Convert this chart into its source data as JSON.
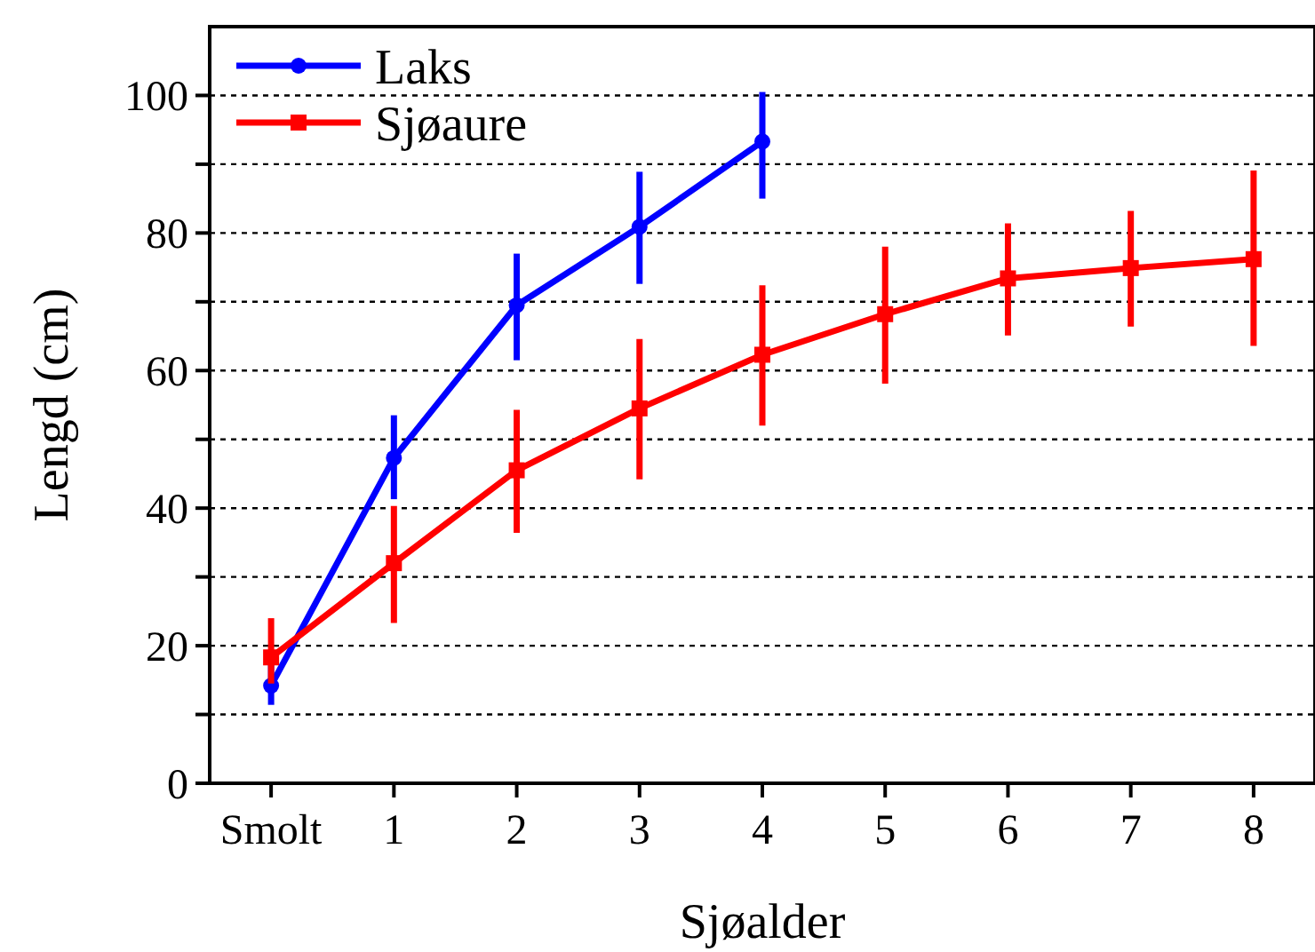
{
  "chart_data": {
    "type": "line",
    "xlabel": "Sjøalder",
    "ylabel": "Lengd (cm)",
    "categories": [
      "Smolt",
      "1",
      "2",
      "3",
      "4",
      "5",
      "6",
      "7",
      "8"
    ],
    "series": [
      {
        "name": "Laks",
        "color": "#0000ff",
        "marker": "circle",
        "values": [
          14.2,
          47.3,
          69.5,
          80.9,
          93.3,
          null,
          null,
          null,
          null
        ],
        "errors": [
          [
            11.4,
            17.6
          ],
          [
            41.3,
            53.5
          ],
          [
            61.5,
            77
          ],
          [
            72.6,
            88.9
          ],
          [
            85,
            100.5
          ],
          null,
          null,
          null,
          null
        ]
      },
      {
        "name": "Sjøaure",
        "color": "#ff0000",
        "marker": "square",
        "values": [
          18.3,
          32,
          45.5,
          54.5,
          62.3,
          68.2,
          73.4,
          74.9,
          76.2
        ],
        "errors": [
          [
            14.5,
            24
          ],
          [
            23.3,
            40.3
          ],
          [
            36.4,
            54.3
          ],
          [
            44.2,
            64.6
          ],
          [
            52,
            72.4
          ],
          [
            58.1,
            78
          ],
          [
            65.1,
            81.4
          ],
          [
            66.4,
            83.2
          ],
          [
            63.6,
            89.1
          ]
        ]
      }
    ],
    "ylim": [
      0,
      110
    ],
    "yticks": [
      0,
      {
        "value": 10,
        "label": null
      },
      20,
      {
        "value": 30,
        "label": null
      },
      40,
      {
        "value": 50,
        "label": null
      },
      60,
      {
        "value": 70,
        "label": null
      },
      80,
      {
        "value": 90,
        "label": null
      },
      100
    ],
    "grid": "y",
    "legend": "top left",
    "line_style": "solid"
  }
}
